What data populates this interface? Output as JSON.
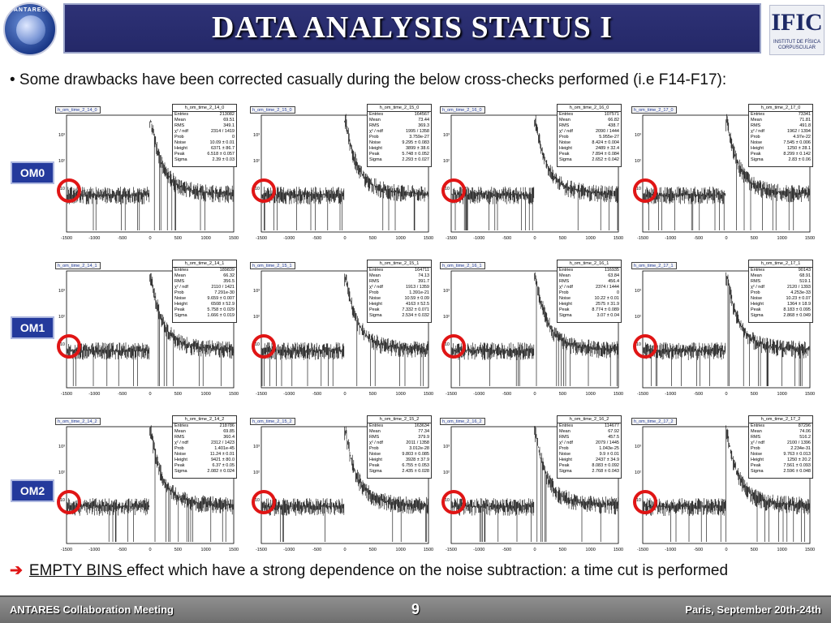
{
  "title": "DATA ANALYSIS STATUS I",
  "logos": {
    "left_text": "ANTARES",
    "right_big": "IFIC",
    "right_small": "INSTITUT DE FÍSICA CORPUSCULAR"
  },
  "bullet_text": "• Some drawbacks have been corrected casually during the below cross-checks performed (i.e F14-F17):",
  "om_labels": [
    "OM0",
    "OM1",
    "OM2"
  ],
  "stat_keys": [
    "Entries",
    "Mean",
    "RMS",
    "χ² / ndf",
    "Prob",
    "Noise",
    "Height",
    "Peak",
    "Sigma"
  ],
  "axis": {
    "x_ticks": [
      "-1500",
      "-1000",
      "-500",
      "0",
      "500",
      "1000",
      "1500"
    ],
    "y_ticks": [
      "10³",
      "10²",
      "10"
    ]
  },
  "histograms": [
    {
      "name": "h_om_time_2_14_0",
      "entries": "213082",
      "mean": "69.51",
      "rms": "349.1",
      "chi2": "2314 / 1419",
      "prob": "0",
      "noise": "10.09 ± 0.01",
      "height": "6371 ± 86.7",
      "peak": "6.518 ± 0.057",
      "sigma": "2.39 ± 0.03"
    },
    {
      "name": "h_om_time_2_15_0",
      "entries": "164567",
      "mean": "73.44",
      "rms": "369.3",
      "chi2": "1995 / 1358",
      "prob": "3.759e-27",
      "noise": "9.295 ± 0.083",
      "height": "3899 ± 38.6",
      "peak": "5.748 ± 0.052",
      "sigma": "2.293 ± 0.027"
    },
    {
      "name": "h_om_time_2_16_0",
      "entries": "107571",
      "mean": "66.82",
      "rms": "438.7",
      "chi2": "2090 / 1444",
      "prob": "5.955e-27",
      "noise": "8.424 ± 0.004",
      "height": "2489 ± 32.4",
      "peak": "7.894 ± 0.084",
      "sigma": "2.652 ± 0.042"
    },
    {
      "name": "h_om_time_2_17_0",
      "entries": "73341",
      "mean": "71.81",
      "rms": "491.8",
      "chi2": "1962 / 1394",
      "prob": "4.97e-22",
      "noise": "7.545 ± 0.006",
      "height": "1250 ± 28.1",
      "peak": "8.299 ± 0.142",
      "sigma": "2.83 ± 0.06"
    },
    {
      "name": "h_om_time_2_14_1",
      "entries": "189839",
      "mean": "66.32",
      "rms": "356.5",
      "chi2": "2110 / 1421",
      "prob": "7.291e-30",
      "noise": "9.659 ± 0.007",
      "height": "6508 ± 52.9",
      "peak": "5.758 ± 0.029",
      "sigma": "1.666 ± 0.019"
    },
    {
      "name": "h_om_time_2_15_1",
      "entries": "164711",
      "mean": "74.13",
      "rms": "391.7",
      "chi2": "1913 / 1359",
      "prob": "1.391e-21",
      "noise": "10.59 ± 0.09",
      "height": "4163 ± 52.5",
      "peak": "7.332 ± 0.071",
      "sigma": "2.534 ± 0.032"
    },
    {
      "name": "h_om_time_2_16_1",
      "entries": "116935",
      "mean": "63.84",
      "rms": "456.4",
      "chi2": "2374 / 1444",
      "prob": "0",
      "noise": "10.22 ± 0.01",
      "height": "2575 ± 31.9",
      "peak": "8.774 ± 0.089",
      "sigma": "3.07 ± 0.04"
    },
    {
      "name": "h_om_time_2_17_1",
      "entries": "90143",
      "mean": "68.91",
      "rms": "519.1",
      "chi2": "2120 / 1393",
      "prob": "4.253e-33",
      "noise": "10.23 ± 0.07",
      "height": "1364 ± 18.9",
      "peak": "8.183 ± 0.095",
      "sigma": "2.868 ± 0.049"
    },
    {
      "name": "h_om_time_2_14_2",
      "entries": "218786",
      "mean": "69.85",
      "rms": "360.4",
      "chi2": "2312 / 1423",
      "prob": "1.401e-45",
      "noise": "11.24 ± 0.01",
      "height": "9421 ± 80.0",
      "peak": "6.37 ± 0.05",
      "sigma": "2.082 ± 0.024"
    },
    {
      "name": "h_om_time_2_15_2",
      "entries": "163634",
      "mean": "77.34",
      "rms": "379.9",
      "chi2": "2011 / 1358",
      "prob": "3.012e-28",
      "noise": "9.803 ± 0.085",
      "height": "3928 ± 37.9",
      "peak": "6.755 ± 0.053",
      "sigma": "2.435 ± 0.028"
    },
    {
      "name": "h_om_time_2_16_2",
      "entries": "114677",
      "mean": "67.92",
      "rms": "457.5",
      "chi2": "2079 / 1445",
      "prob": "1.043e-25",
      "noise": "9.9 ± 0.01",
      "height": "2437 ± 34.9",
      "peak": "8.083 ± 0.092",
      "sigma": "2.768 ± 0.043"
    },
    {
      "name": "h_om_time_2_17_2",
      "entries": "87296",
      "mean": "74.06",
      "rms": "516.2",
      "chi2": "2100 / 1396",
      "prob": "2.234e-31",
      "noise": "9.763 ± 0.013",
      "height": "1250 ± 20.2",
      "peak": "7.561 ± 0.093",
      "sigma": "2.596 ± 0.048"
    }
  ],
  "bottom": {
    "arrow": "➔",
    "underlined": "EMPTY BINS ",
    "rest": "effect which have a strong dependence on the noise subtraction: a time cut is performed"
  },
  "footer": {
    "left": "ANTARES Collaboration Meeting",
    "page": "9",
    "right": "Paris, September 20th-24th"
  },
  "colors": {
    "title_bg": "#2e3276",
    "om_label_bg": "#243a9c",
    "circle": "#e01515",
    "footer_bg": "#7a7a7a"
  }
}
